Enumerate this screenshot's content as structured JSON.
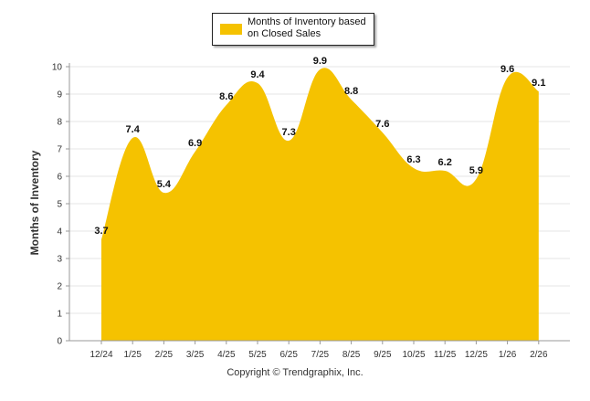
{
  "chart_data": {
    "type": "area",
    "categories": [
      "12/24",
      "1/25",
      "2/25",
      "3/25",
      "4/25",
      "5/25",
      "6/25",
      "7/25",
      "8/25",
      "9/25",
      "10/25",
      "11/25",
      "12/25",
      "1/26",
      "2/26"
    ],
    "series": [
      {
        "name": "Months of Inventory based on Closed Sales",
        "values": [
          3.7,
          7.4,
          5.4,
          6.9,
          8.6,
          9.4,
          7.3,
          9.9,
          8.8,
          7.6,
          6.3,
          6.2,
          5.9,
          9.6,
          9.1
        ],
        "data_labels": [
          "3.7",
          "7.4",
          "5.4",
          "6.9",
          "8.6",
          "9.4",
          "7.3",
          "9.9",
          "8.8",
          "7.6",
          "6.3",
          "6.2",
          "5.9",
          "9.6",
          "9.1"
        ],
        "color": "#f5c200"
      }
    ],
    "ylabel": "Months of Inventory",
    "xlabel": "",
    "ylim": [
      0,
      10
    ],
    "y_ticks": [
      "0",
      "1",
      "2",
      "3",
      "4",
      "5",
      "6",
      "7",
      "8",
      "9",
      "10"
    ],
    "grid": true,
    "legend_position": "top-center",
    "colors": {
      "fill": "#f5c200",
      "grid": "#e6e6e6",
      "axis": "#999999"
    }
  },
  "legend": {
    "label": "Months of Inventory based on Closed Sales"
  },
  "footer": {
    "copyright": "Copyright © Trendgraphix, Inc."
  }
}
